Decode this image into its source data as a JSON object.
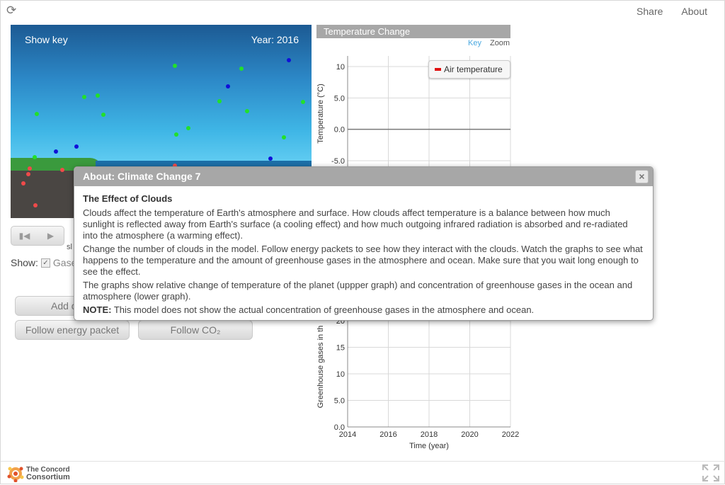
{
  "nav": {
    "share": "Share",
    "about": "About"
  },
  "model": {
    "show_key": "Show key",
    "year": "Year: 2016"
  },
  "controls": {
    "small_label": "sl",
    "show_label": "Show:",
    "gases_label": "Gases",
    "add_label": "Add c",
    "follow_energy": "Follow energy packet",
    "follow_co2": "Follow CO₂"
  },
  "graph": {
    "title": "Temperature Change",
    "key": "Key",
    "zoom": "Zoom",
    "legend": "Air temperature",
    "upper_ylabel": "Temperature (°C)",
    "lower_ylabel": "Greenhouse gases in th",
    "xlabel": "Time (year)",
    "colors": {
      "air_temperature": "#e01010"
    }
  },
  "chart_data": [
    {
      "type": "line",
      "title": "Temperature Change",
      "ylabel": "Temperature (°C)",
      "xlim": [
        2014,
        2022
      ],
      "ylim": [
        -5.0,
        10
      ],
      "yticks": [
        "10",
        "5.0",
        "0.0",
        "-5.0"
      ],
      "series": [
        {
          "name": "Air temperature",
          "values": []
        }
      ],
      "grid": true,
      "legend": "top-right"
    },
    {
      "type": "line",
      "ylabel": "Greenhouse gases in th",
      "xlabel": "Time (year)",
      "xlim": [
        2014,
        2022
      ],
      "ylim": [
        0.0,
        20
      ],
      "xticks": [
        "2014",
        "2016",
        "2018",
        "2020",
        "2022"
      ],
      "yticks": [
        "20",
        "15",
        "10",
        "5.0",
        "0.0"
      ],
      "series": [],
      "grid": true
    }
  ],
  "dialog": {
    "title": "About: Climate Change 7",
    "close": "×",
    "heading": "The Effect of Clouds",
    "p1": "Clouds affect the temperature of Earth's atmosphere and surface. How clouds affect temperature is a balance between how much sunlight is reflected away from Earth's surface (a cooling effect) and how much outgoing infrared radiation is absorbed and re-radiated into the atmosphere (a warming effect).",
    "p2": "Change the number of clouds in the model. Follow energy packets to see how they interact with the clouds. Watch the graphs to see what happens to the temperature and the amount of greenhouse gases in the atmosphere and ocean. Make sure that you wait long enough to see the effect.",
    "p3": "The graphs show relative change of temperature of the planet (uppper graph) and concentration of greenhouse gases in the ocean and atmosphere (lower graph).",
    "note_label": "NOTE:",
    "note_text": " This model does not show the actual concentration of greenhouse gases in the atmosphere and ocean."
  },
  "footer": {
    "logo_line1": "The Concord",
    "logo_line2": "Consortium"
  },
  "icons": {
    "reload": "reload-icon",
    "fullscreen": "fullscreen-icon",
    "play": "play-icon",
    "step_back": "step-back-icon",
    "check": "checkmark-icon"
  }
}
